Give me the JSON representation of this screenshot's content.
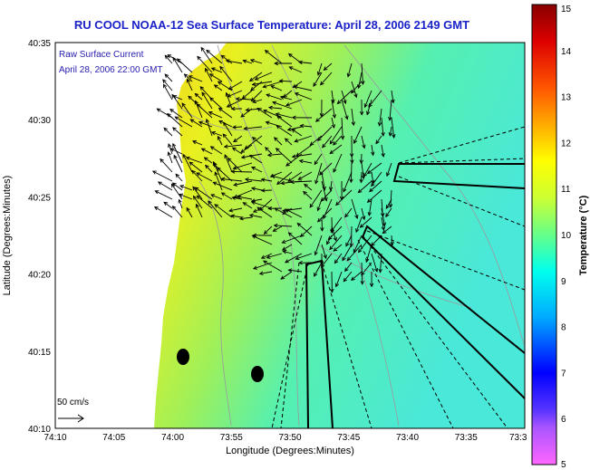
{
  "title": "RU COOL  NOAA-12  Sea Surface Temperature:  April 28, 2006 2149 GMT",
  "legend": {
    "line1": "Raw Surface Current",
    "line2": "April 28, 2006 22:00 GMT",
    "scale_label": "50 cm/s"
  },
  "axes": {
    "xlabel": "Longitude (Degrees:Minutes)",
    "ylabel": "Latitude (Degrees:Minutes)",
    "xticks": [
      "74:10",
      "74:05",
      "74:00",
      "73:55",
      "73:50",
      "73:45",
      "73:40",
      "73:35",
      "73:3"
    ],
    "yticks": [
      "40:35",
      "40:30",
      "40:25",
      "40:20",
      "40:15",
      "40:10"
    ]
  },
  "colorbar": {
    "label": "Temperature (°C)",
    "ticks": [
      "15",
      "14",
      "13",
      "12",
      "11",
      "10",
      "9",
      "8",
      "7",
      "6",
      "5"
    ],
    "range": [
      5,
      15
    ],
    "colors": [
      "#ff66ff",
      "#8844ff",
      "#0000ff",
      "#00aaff",
      "#00ffee",
      "#66ff88",
      "#ccff33",
      "#ffff00",
      "#ffaa00",
      "#ff5500",
      "#dd0000",
      "#880000"
    ]
  },
  "map_colors": {
    "land": "#ffffff",
    "warm_nearshore": "#e8401a",
    "mid_shelf": "#f2e61c",
    "offshore": "#66f0c8"
  }
}
